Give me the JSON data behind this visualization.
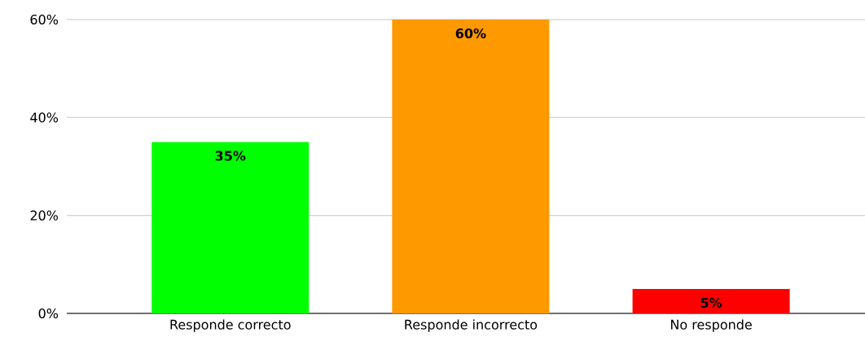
{
  "chart_data": {
    "type": "bar",
    "categories": [
      "Responde correcto",
      "Responde incorrecto",
      "No responde"
    ],
    "values": [
      35,
      60,
      5
    ],
    "colors": [
      "#00ff00",
      "#ff9900",
      "#ff0000"
    ],
    "value_labels": [
      "35%",
      "60%",
      "5%"
    ],
    "ylim": [
      0,
      60
    ],
    "yticks": [
      {
        "value": 0,
        "label": "0%"
      },
      {
        "value": 20,
        "label": "20%"
      },
      {
        "value": 40,
        "label": "40%"
      },
      {
        "value": 60,
        "label": "60%"
      }
    ],
    "grid": "y"
  }
}
